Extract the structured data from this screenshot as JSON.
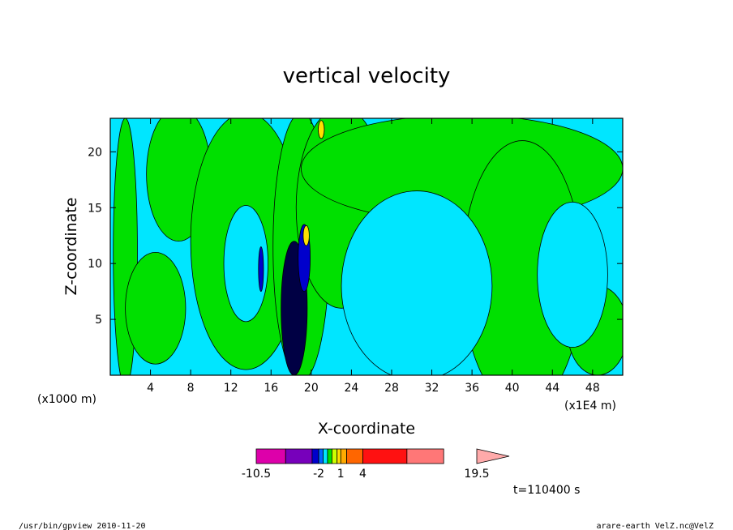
{
  "window": {
    "title": "vertical velocity"
  },
  "footer": {
    "left": "/usr/bin/gpview   2010-11-20",
    "right": "arare-earth_VelZ.nc@VelZ"
  },
  "time_label": "t=110400 s",
  "chart_data": {
    "type": "heatmap",
    "title": "vertical velocity",
    "xlabel": "X-coordinate",
    "ylabel": "Z-coordinate",
    "x_unit_left": "(x1000 m)",
    "x_unit_right": "(x1E4 m)",
    "xlim": [
      0,
      51
    ],
    "ylim": [
      0,
      23
    ],
    "x_ticks": [
      4,
      8,
      12,
      16,
      20,
      24,
      28,
      32,
      36,
      40,
      44,
      48
    ],
    "y_ticks": [
      5,
      10,
      15,
      20
    ],
    "background_color": "#00e6ff",
    "positive_color": "#00e000",
    "colorbar": {
      "labels": [
        "-10.5",
        "-2",
        "1",
        "4",
        "19.5"
      ],
      "label_values": [
        -10.5,
        -2,
        1,
        4,
        19.5
      ],
      "range": [
        -10.5,
        19.5
      ],
      "colors": [
        "#dd00aa",
        "#7700bb",
        "#0000cc",
        "#0066ff",
        "#00e6ff",
        "#00e000",
        "#ccff00",
        "#ffe000",
        "#ffaa00",
        "#ff6600",
        "#ff1111",
        "#ff7777",
        "#ffaaaa"
      ]
    },
    "regions": [
      {
        "cx": 1.5,
        "cy": 11,
        "rx": 1.2,
        "ry": 12,
        "level": "positive"
      },
      {
        "cx": 6.8,
        "cy": 18,
        "rx": 3.2,
        "ry": 6,
        "level": "positive"
      },
      {
        "cx": 4.5,
        "cy": 6,
        "rx": 3,
        "ry": 5,
        "level": "positive"
      },
      {
        "cx": 13.5,
        "cy": 12,
        "rx": 5.5,
        "ry": 11.5,
        "level": "positive"
      },
      {
        "cx": 19,
        "cy": 11.5,
        "rx": 2.8,
        "ry": 12,
        "level": "positive"
      },
      {
        "cx": 23,
        "cy": 15,
        "rx": 4.5,
        "ry": 9,
        "level": "positive"
      },
      {
        "cx": 35,
        "cy": 18.5,
        "rx": 16,
        "ry": 4.8,
        "level": "positive"
      },
      {
        "cx": 41,
        "cy": 9,
        "rx": 6,
        "ry": 12,
        "level": "positive"
      },
      {
        "cx": 48.5,
        "cy": 4,
        "rx": 3,
        "ry": 4,
        "level": "positive"
      },
      {
        "cx": 13.5,
        "cy": 10,
        "rx": 2.2,
        "ry": 5.2,
        "level": "background"
      },
      {
        "cx": 30.5,
        "cy": 8,
        "rx": 7.5,
        "ry": 8.5,
        "level": "background"
      },
      {
        "cx": 46,
        "cy": 9,
        "rx": 3.5,
        "ry": 6.5,
        "level": "background"
      },
      {
        "cx": 18.3,
        "cy": 6,
        "rx": 1.3,
        "ry": 6,
        "level": "strong_negative"
      },
      {
        "cx": 19.3,
        "cy": 10.5,
        "rx": 0.6,
        "ry": 3,
        "level": "negative"
      },
      {
        "cx": 15,
        "cy": 9.5,
        "rx": 0.25,
        "ry": 2,
        "level": "negative"
      },
      {
        "cx": 21,
        "cy": 22,
        "rx": 0.3,
        "ry": 0.8,
        "level": "positive_high"
      },
      {
        "cx": 19.5,
        "cy": 12.5,
        "rx": 0.3,
        "ry": 0.9,
        "level": "positive_high"
      }
    ]
  }
}
